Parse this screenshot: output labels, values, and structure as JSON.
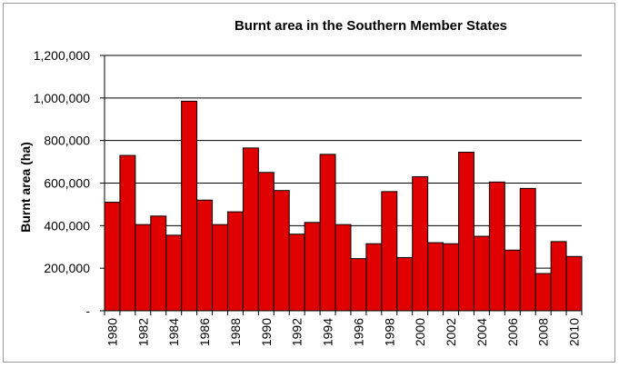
{
  "chart_data": {
    "type": "bar",
    "title": "Burnt area in the Southern Member States",
    "xlabel": "",
    "ylabel": "Burnt area (ha)",
    "ylim": [
      0,
      1200000
    ],
    "yticks": [
      0,
      200000,
      400000,
      600000,
      800000,
      1000000,
      1200000
    ],
    "ytick_labels": [
      "-",
      "200,000",
      "400,000",
      "600,000",
      "800,000",
      "1,000,000",
      "1,200,000"
    ],
    "categories": [
      "1980",
      "1981",
      "1982",
      "1983",
      "1984",
      "1985",
      "1986",
      "1987",
      "1988",
      "1989",
      "1990",
      "1991",
      "1992",
      "1993",
      "1994",
      "1995",
      "1996",
      "1997",
      "1998",
      "1999",
      "2000",
      "2001",
      "2002",
      "2003",
      "2004",
      "2005",
      "2006",
      "2007",
      "2008",
      "2009",
      "2010"
    ],
    "xtick_labels": [
      "1980",
      "",
      "1982",
      "",
      "1984",
      "",
      "1986",
      "",
      "1988",
      "",
      "1990",
      "",
      "1992",
      "",
      "1994",
      "",
      "1996",
      "",
      "1998",
      "",
      "2000",
      "",
      "2002",
      "",
      "2004",
      "",
      "2006",
      "",
      "2008",
      "",
      "2010"
    ],
    "values": [
      510000,
      730000,
      405000,
      445000,
      355000,
      985000,
      520000,
      405000,
      465000,
      765000,
      650000,
      565000,
      360000,
      415000,
      735000,
      405000,
      245000,
      315000,
      560000,
      250000,
      630000,
      320000,
      315000,
      745000,
      350000,
      605000,
      285000,
      575000,
      175000,
      325000,
      255000
    ],
    "grid": true,
    "bar_color": "#e00000",
    "bar_edge_color": "#000000"
  }
}
